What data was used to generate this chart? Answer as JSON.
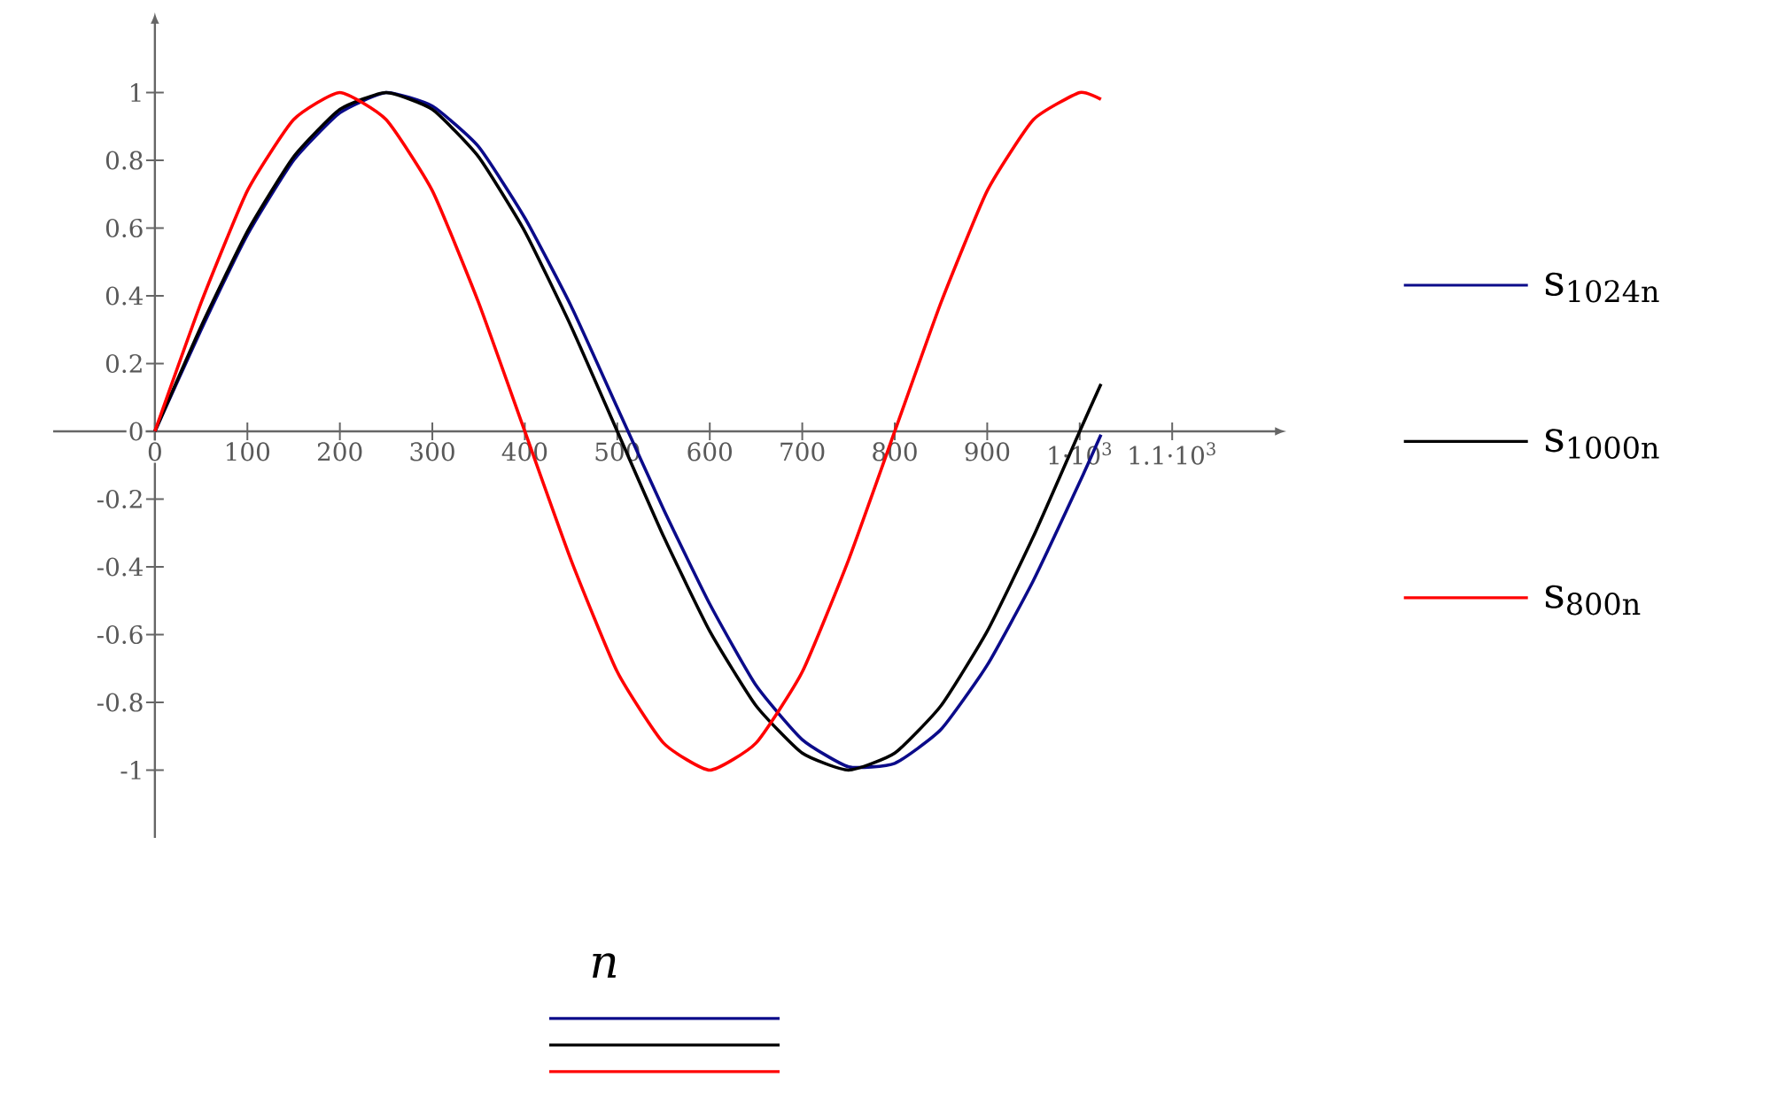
{
  "chart_data": {
    "type": "line",
    "xlabel": "n",
    "x": [
      0,
      50,
      100,
      150,
      200,
      250,
      300,
      350,
      400,
      450,
      500,
      550,
      600,
      650,
      700,
      750,
      800,
      850,
      900,
      950,
      1000,
      1023
    ],
    "series": [
      {
        "name": "s$_{1024n}$",
        "color": "#0b0b8a",
        "values": [
          0,
          0.3,
          0.58,
          0.8,
          0.94,
          1.0,
          0.96,
          0.84,
          0.63,
          0.37,
          0.07,
          -0.23,
          -0.51,
          -0.75,
          -0.91,
          -0.99,
          -0.98,
          -0.88,
          -0.69,
          -0.44,
          -0.15,
          -0.01
        ]
      },
      {
        "name": "s$_{1000n}$",
        "color": "#000000",
        "values": [
          0,
          0.31,
          0.59,
          0.81,
          0.95,
          1.0,
          0.95,
          0.81,
          0.59,
          0.31,
          0,
          -0.31,
          -0.59,
          -0.81,
          -0.95,
          -1.0,
          -0.95,
          -0.81,
          -0.59,
          -0.31,
          0,
          0.14
        ]
      },
      {
        "name": "s$_{800n}$",
        "color": "#ff0000",
        "values": [
          0,
          0.38,
          0.71,
          0.92,
          1.0,
          0.92,
          0.71,
          0.38,
          0,
          -0.38,
          -0.71,
          -0.92,
          -1.0,
          -0.92,
          -0.71,
          -0.38,
          0,
          0.38,
          0.71,
          0.92,
          1.0,
          0.98
        ]
      }
    ],
    "xlim": [
      -110,
      1210
    ],
    "ylim": [
      -1.2,
      1.2
    ],
    "xticks": [
      0,
      100,
      200,
      300,
      400,
      500,
      600,
      700,
      800,
      900,
      {
        "value": 1000,
        "label": "1·10$^{3}$"
      },
      {
        "value": 1100,
        "label": "1.1·10$^{3}$"
      }
    ],
    "yticks": [
      -1,
      -0.8,
      -0.6,
      -0.4,
      -0.2,
      0,
      0.2,
      0.4,
      0.6,
      0.8,
      1
    ],
    "grid": false,
    "legend": "right",
    "line_style": "solid"
  }
}
